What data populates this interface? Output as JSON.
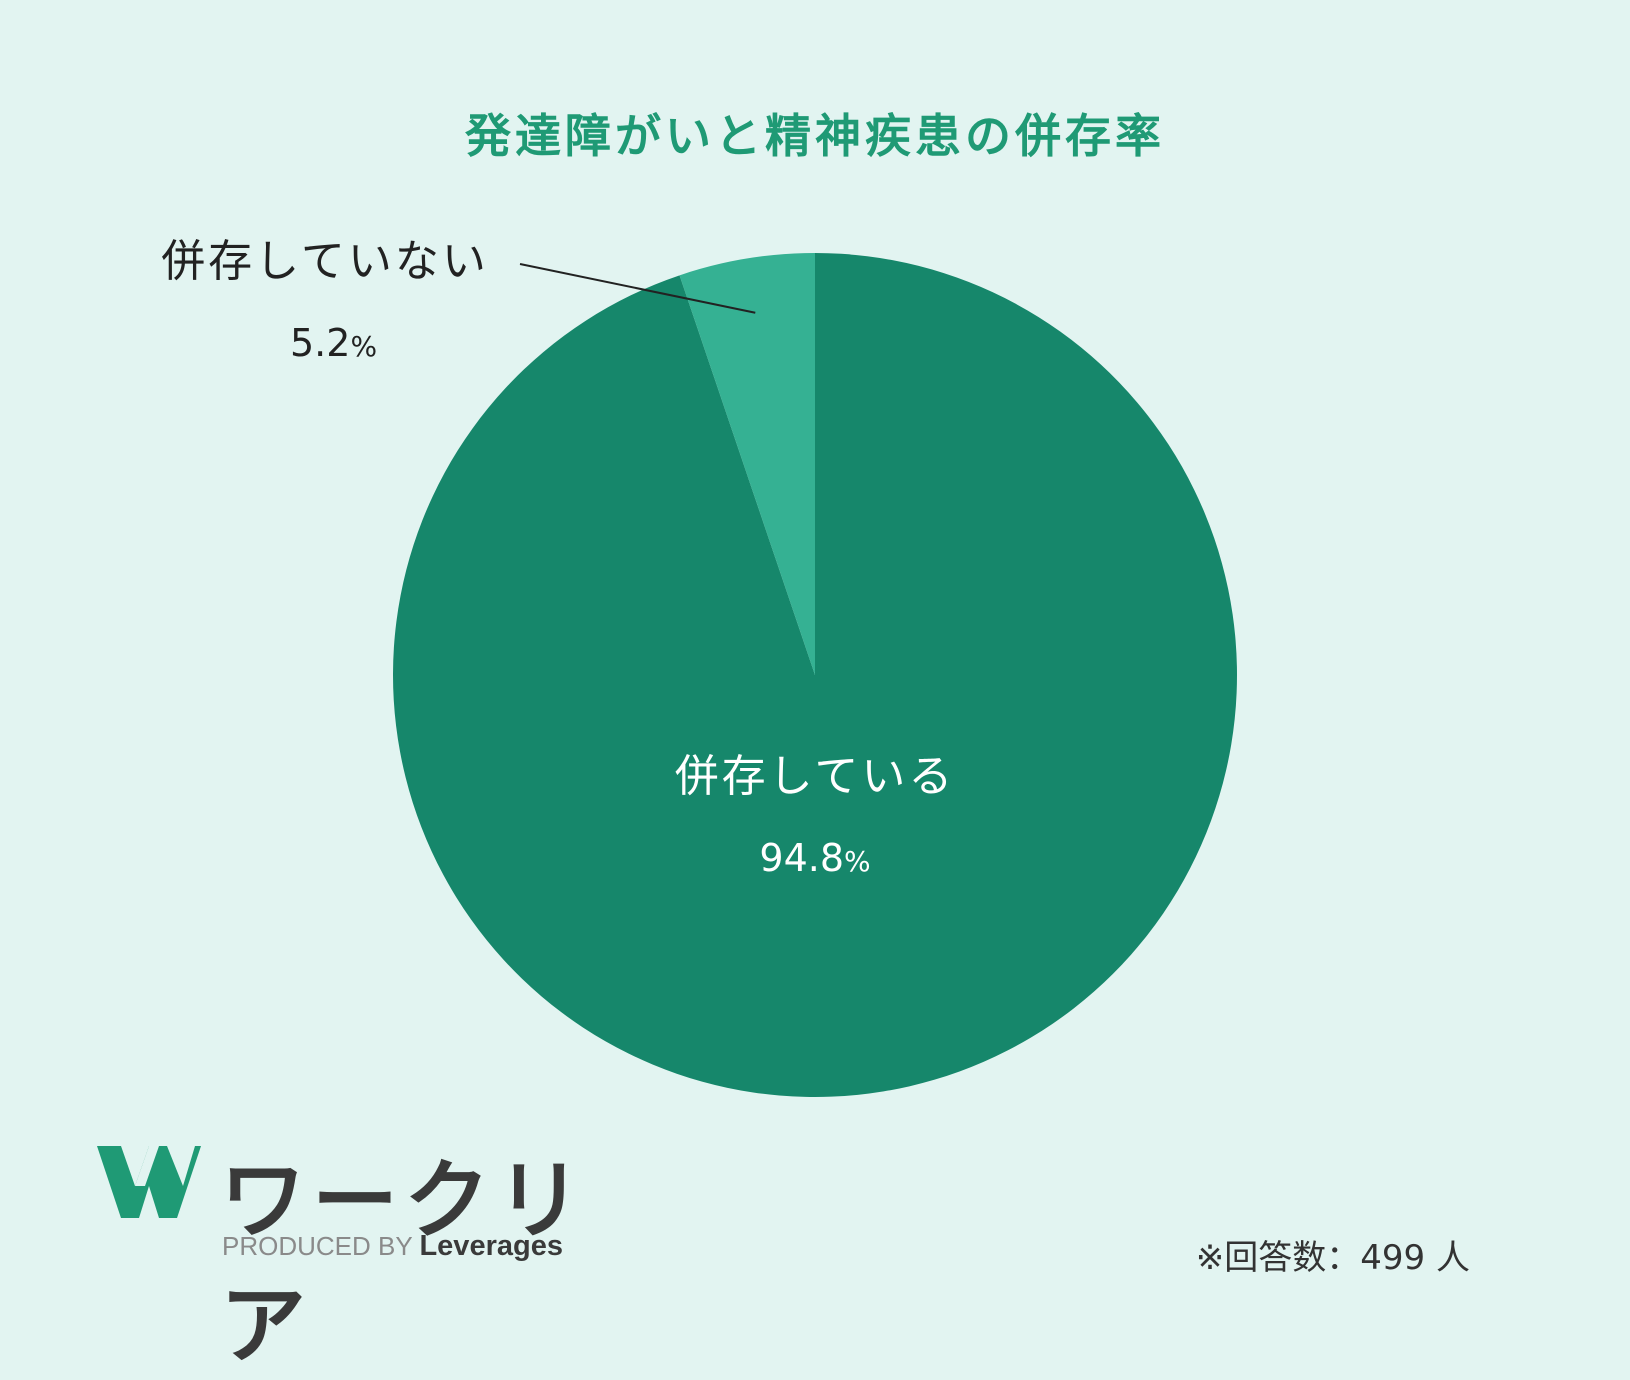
{
  "title": "発達障がいと精神疾患の併存率",
  "colors": {
    "background": "#e2f4f1",
    "title": "#1f9a75",
    "main_slice": "#16876b",
    "small_slice": "#35b193"
  },
  "chart_data": {
    "type": "pie",
    "title": "発達障がいと精神疾患の併存率",
    "slices": [
      {
        "label": "併存している",
        "value": 94.8,
        "display": "94.8",
        "unit": "%",
        "color": "#16876b"
      },
      {
        "label": "併存していない",
        "value": 5.2,
        "display": "5.2",
        "unit": "%",
        "color": "#35b193"
      }
    ]
  },
  "logo": {
    "icon": "w-logo-icon",
    "wordmark": "ワークリア",
    "produced_by": "PRODUCED BY",
    "brand": "Leverages"
  },
  "footnote": "※回答数：499 人"
}
